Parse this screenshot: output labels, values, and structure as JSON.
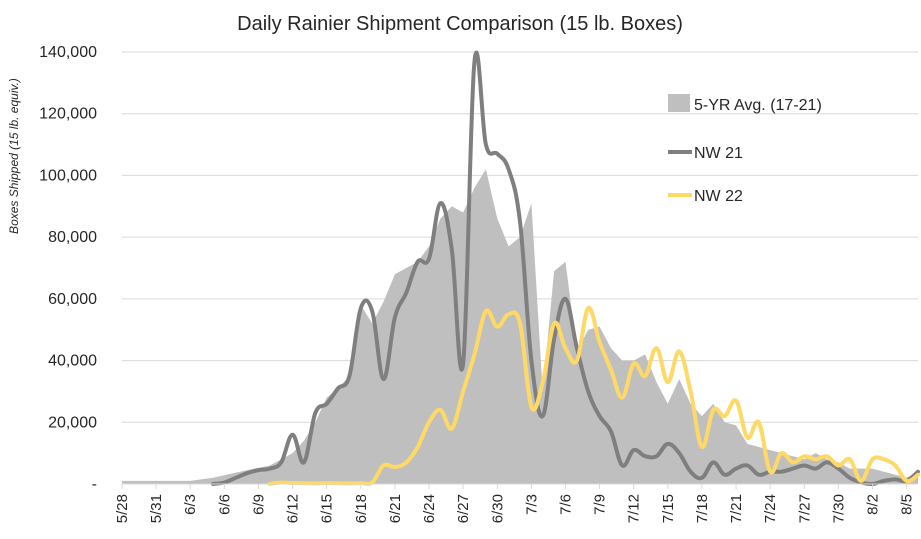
{
  "chart_data": {
    "type": "line",
    "title": "Daily Rainier Shipment Comparison (15 lb. Boxes)",
    "ylabel": "Boxes Shipped (15 lb. equiv.)",
    "xlabel": "",
    "ylim": [
      0,
      140000
    ],
    "yticks": [
      "-",
      "20,000",
      "40,000",
      "60,000",
      "80,000",
      "100,000",
      "120,000",
      "140,000"
    ],
    "ytick_values": [
      0,
      20000,
      40000,
      60000,
      80000,
      100000,
      120000,
      140000
    ],
    "xtick_labels": [
      "5/28",
      "5/31",
      "6/3",
      "6/6",
      "6/9",
      "6/12",
      "6/15",
      "6/18",
      "6/21",
      "6/24",
      "6/27",
      "6/30",
      "7/3",
      "7/6",
      "7/9",
      "7/12",
      "7/15",
      "7/18",
      "7/21",
      "7/24",
      "7/27",
      "7/30",
      "8/2",
      "8/5"
    ],
    "grid": "horizontal",
    "legend_position": "right",
    "series": [
      {
        "name": "5-YR Avg. (17-21)",
        "style": "area",
        "color": "#bfbfbf",
        "points": [
          [
            "5/28",
            1000
          ],
          [
            "6/3",
            1000
          ],
          [
            "6/5",
            2000
          ],
          [
            "6/8",
            4500
          ],
          [
            "6/10",
            6000
          ],
          [
            "6/12",
            10000
          ],
          [
            "6/13",
            14000
          ],
          [
            "6/14",
            20000
          ],
          [
            "6/15",
            28000
          ],
          [
            "6/16",
            31000
          ],
          [
            "6/17",
            35000
          ],
          [
            "6/18",
            58000
          ],
          [
            "6/19",
            52000
          ],
          [
            "6/20",
            59000
          ],
          [
            "6/21",
            68000
          ],
          [
            "6/22",
            70000
          ],
          [
            "6/23",
            72000
          ],
          [
            "6/24",
            77000
          ],
          [
            "6/25",
            86000
          ],
          [
            "6/26",
            90000
          ],
          [
            "6/27",
            88000
          ],
          [
            "6/28",
            96000
          ],
          [
            "6/29",
            102000
          ],
          [
            "6/30",
            86000
          ],
          [
            "7/1",
            77000
          ],
          [
            "7/2",
            80000
          ],
          [
            "7/3",
            91000
          ],
          [
            "7/4",
            30000
          ],
          [
            "7/5",
            69000
          ],
          [
            "7/6",
            72000
          ],
          [
            "7/7",
            43000
          ],
          [
            "7/8",
            50000
          ],
          [
            "7/9",
            51000
          ],
          [
            "7/10",
            44000
          ],
          [
            "7/11",
            40000
          ],
          [
            "7/12",
            40000
          ],
          [
            "7/13",
            42000
          ],
          [
            "7/14",
            33000
          ],
          [
            "7/15",
            26000
          ],
          [
            "7/16",
            34000
          ],
          [
            "7/17",
            26000
          ],
          [
            "7/18",
            22000
          ],
          [
            "7/19",
            26000
          ],
          [
            "7/20",
            20000
          ],
          [
            "7/21",
            19000
          ],
          [
            "7/22",
            13000
          ],
          [
            "7/23",
            12000
          ],
          [
            "7/24",
            11000
          ],
          [
            "7/25",
            10000
          ],
          [
            "7/26",
            9000
          ],
          [
            "7/27",
            8000
          ],
          [
            "7/28",
            10000
          ],
          [
            "7/29",
            8000
          ],
          [
            "7/30",
            7000
          ],
          [
            "7/31",
            5000
          ],
          [
            "8/1",
            5000
          ],
          [
            "8/2",
            5000
          ],
          [
            "8/3",
            4000
          ],
          [
            "8/4",
            3000
          ],
          [
            "8/5",
            2000
          ],
          [
            "8/6",
            4000
          ]
        ]
      },
      {
        "name": "NW 21",
        "style": "line",
        "color": "#7f7f7f",
        "points": [
          [
            "6/5",
            0
          ],
          [
            "6/6",
            500
          ],
          [
            "6/7",
            2000
          ],
          [
            "6/8",
            3500
          ],
          [
            "6/9",
            4500
          ],
          [
            "6/10",
            5000
          ],
          [
            "6/11",
            7000
          ],
          [
            "6/12",
            16000
          ],
          [
            "6/13",
            7000
          ],
          [
            "6/14",
            23000
          ],
          [
            "6/15",
            26000
          ],
          [
            "6/16",
            31000
          ],
          [
            "6/17",
            35000
          ],
          [
            "6/18",
            57000
          ],
          [
            "6/19",
            56000
          ],
          [
            "6/20",
            34000
          ],
          [
            "6/21",
            54000
          ],
          [
            "6/22",
            62000
          ],
          [
            "6/23",
            72000
          ],
          [
            "6/24",
            73000
          ],
          [
            "6/25",
            91000
          ],
          [
            "6/26",
            76000
          ],
          [
            "6/27",
            39000
          ],
          [
            "6/28",
            137000
          ],
          [
            "6/29",
            110000
          ],
          [
            "6/30",
            107000
          ],
          [
            "7/1",
            102000
          ],
          [
            "7/2",
            85000
          ],
          [
            "7/3",
            40000
          ],
          [
            "7/4",
            22000
          ],
          [
            "7/5",
            47000
          ],
          [
            "7/6",
            60000
          ],
          [
            "7/7",
            44000
          ],
          [
            "7/8",
            30000
          ],
          [
            "7/9",
            22000
          ],
          [
            "7/10",
            17000
          ],
          [
            "7/11",
            6000
          ],
          [
            "7/12",
            11000
          ],
          [
            "7/13",
            9000
          ],
          [
            "7/14",
            9000
          ],
          [
            "7/15",
            13000
          ],
          [
            "7/16",
            10000
          ],
          [
            "7/17",
            4000
          ],
          [
            "7/18",
            2000
          ],
          [
            "7/19",
            7000
          ],
          [
            "7/20",
            3000
          ],
          [
            "7/21",
            5000
          ],
          [
            "7/22",
            6000
          ],
          [
            "7/23",
            3000
          ],
          [
            "7/24",
            4000
          ],
          [
            "7/25",
            4000
          ],
          [
            "7/26",
            5000
          ],
          [
            "7/27",
            6000
          ],
          [
            "7/28",
            5000
          ],
          [
            "7/29",
            7000
          ],
          [
            "7/30",
            5000
          ],
          [
            "7/31",
            2000
          ],
          [
            "8/1",
            500
          ],
          [
            "8/2",
            0
          ],
          [
            "8/3",
            1000
          ],
          [
            "8/4",
            1500
          ],
          [
            "8/5",
            1000
          ],
          [
            "8/6",
            4000
          ]
        ]
      },
      {
        "name": "NW 22",
        "style": "line",
        "color": "#ffd966",
        "points": [
          [
            "6/10",
            0
          ],
          [
            "6/11",
            500
          ],
          [
            "6/12",
            300
          ],
          [
            "6/14",
            200
          ],
          [
            "6/15",
            300
          ],
          [
            "6/17",
            200
          ],
          [
            "6/18",
            300
          ],
          [
            "6/19",
            500
          ],
          [
            "6/20",
            6000
          ],
          [
            "6/21",
            5500
          ],
          [
            "6/22",
            7000
          ],
          [
            "6/23",
            12000
          ],
          [
            "6/24",
            20000
          ],
          [
            "6/25",
            24000
          ],
          [
            "6/26",
            18000
          ],
          [
            "6/27",
            30000
          ],
          [
            "6/28",
            42000
          ],
          [
            "6/29",
            56000
          ],
          [
            "6/30",
            51000
          ],
          [
            "7/1",
            55000
          ],
          [
            "7/2",
            52000
          ],
          [
            "7/3",
            25000
          ],
          [
            "7/4",
            33000
          ],
          [
            "7/5",
            52000
          ],
          [
            "7/6",
            44000
          ],
          [
            "7/7",
            40000
          ],
          [
            "7/8",
            57000
          ],
          [
            "7/9",
            46000
          ],
          [
            "7/10",
            37000
          ],
          [
            "7/11",
            28000
          ],
          [
            "7/12",
            39000
          ],
          [
            "7/13",
            35000
          ],
          [
            "7/14",
            44000
          ],
          [
            "7/15",
            33000
          ],
          [
            "7/16",
            43000
          ],
          [
            "7/17",
            30000
          ],
          [
            "7/18",
            12000
          ],
          [
            "7/19",
            24000
          ],
          [
            "7/20",
            22000
          ],
          [
            "7/21",
            27000
          ],
          [
            "7/22",
            15000
          ],
          [
            "7/23",
            20000
          ],
          [
            "7/24",
            4000
          ],
          [
            "7/25",
            10000
          ],
          [
            "7/26",
            7000
          ],
          [
            "7/27",
            9000
          ],
          [
            "7/28",
            8000
          ],
          [
            "7/29",
            9000
          ],
          [
            "7/30",
            6000
          ],
          [
            "7/31",
            8000
          ],
          [
            "8/1",
            1000
          ],
          [
            "8/2",
            8000
          ],
          [
            "8/3",
            8000
          ],
          [
            "8/4",
            6000
          ],
          [
            "8/5",
            1000
          ],
          [
            "8/6",
            3000
          ]
        ]
      }
    ]
  }
}
